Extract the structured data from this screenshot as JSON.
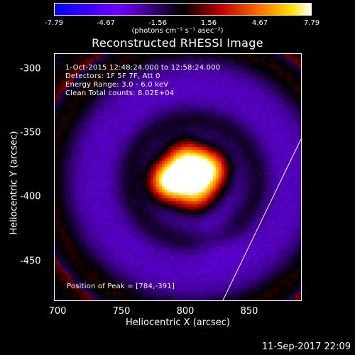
{
  "colorbar": {
    "ticks": [
      "-7.79",
      "-4.67",
      "-1.56",
      "1.56",
      "4.67",
      "7.79"
    ],
    "unit": "(photons cm⁻² s⁻¹ asec⁻²)",
    "min": -7.79,
    "max": 7.79
  },
  "title": "Reconstructed RHESSI Image",
  "annotations": {
    "time": "1-Oct-2015 12:48:24.000 to 12:58:24.000",
    "detectors": "Detectors: 1F 5F 7F, Att 0",
    "energy": "Energy Range: 3.0 - 6.0 keV",
    "clean": "Clean    Total counts: 8.02E+04",
    "peak": "Position of Peak = [784,-391]"
  },
  "axes": {
    "xlabel": "Heliocentric X (arcsec)",
    "ylabel": "Heliocentric Y (arcsec)",
    "xticks": [
      "700",
      "750",
      "800",
      "850"
    ],
    "yticks": [
      "-300",
      "-350",
      "-400",
      "-450"
    ]
  },
  "footer": "11-Sep-2017 22:09",
  "chart_data": {
    "type": "heatmap",
    "title": "Reconstructed RHESSI Image",
    "xlabel": "Heliocentric X (arcsec)",
    "ylabel": "Heliocentric Y (arcsec)",
    "xlim": [
      697,
      891
    ],
    "ylim": [
      -483,
      -289
    ],
    "clim": [
      -7.79,
      7.79
    ],
    "peak": [
      784,
      -391
    ],
    "sources": [
      {
        "x": 787,
        "y": -389,
        "amplitude": 7.8
      },
      {
        "x": 818,
        "y": -380,
        "amplitude": 6.4
      },
      {
        "x": 800,
        "y": -372,
        "amplitude": 4.8
      },
      {
        "x": 808,
        "y": -398,
        "amplitude": 4.5
      }
    ],
    "limb_line": [
      [
        829,
        -483
      ],
      [
        891,
        -355
      ]
    ],
    "colors": {
      "low": "#0000ff",
      "mid": "#000000",
      "high": "#ffffff"
    }
  }
}
